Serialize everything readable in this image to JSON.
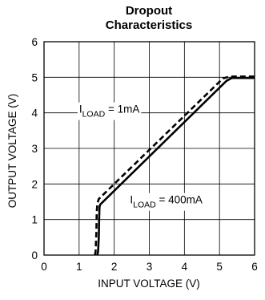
{
  "chart_data": {
    "type": "line",
    "title_lines": [
      "Dropout",
      "Characteristics"
    ],
    "xlabel": "INPUT VOLTAGE (V)",
    "ylabel": "OUTPUT VOLTAGE (V)",
    "xlim": [
      0,
      6
    ],
    "ylim": [
      0,
      6
    ],
    "xticks": [
      0,
      1,
      2,
      3,
      4,
      5,
      6
    ],
    "yticks": [
      0,
      1,
      2,
      3,
      4,
      5,
      6
    ],
    "grid": true,
    "series": [
      {
        "style": "solid",
        "x": [
          1.52,
          1.54,
          1.56,
          1.57,
          1.58,
          1.6,
          5.2,
          5.35,
          6.0
        ],
        "y": [
          0,
          0.1,
          0.5,
          1.0,
          1.35,
          1.42,
          4.9,
          4.98,
          4.98
        ]
      },
      {
        "style": "dashed",
        "x": [
          1.45,
          1.47,
          1.49,
          1.5,
          1.52,
          1.56,
          5.1,
          5.3,
          6.0
        ],
        "y": [
          0,
          0.1,
          0.6,
          1.2,
          1.45,
          1.58,
          4.97,
          5.02,
          5.02
        ]
      }
    ],
    "annotations": [
      {
        "main": "I",
        "sub": "LOAD",
        "suffix": " = 1mA",
        "x": 1.0,
        "y": 4.0
      },
      {
        "main": "I",
        "sub": "LOAD",
        "suffix": " = 400mA",
        "x": 2.45,
        "y": 1.45
      }
    ]
  }
}
